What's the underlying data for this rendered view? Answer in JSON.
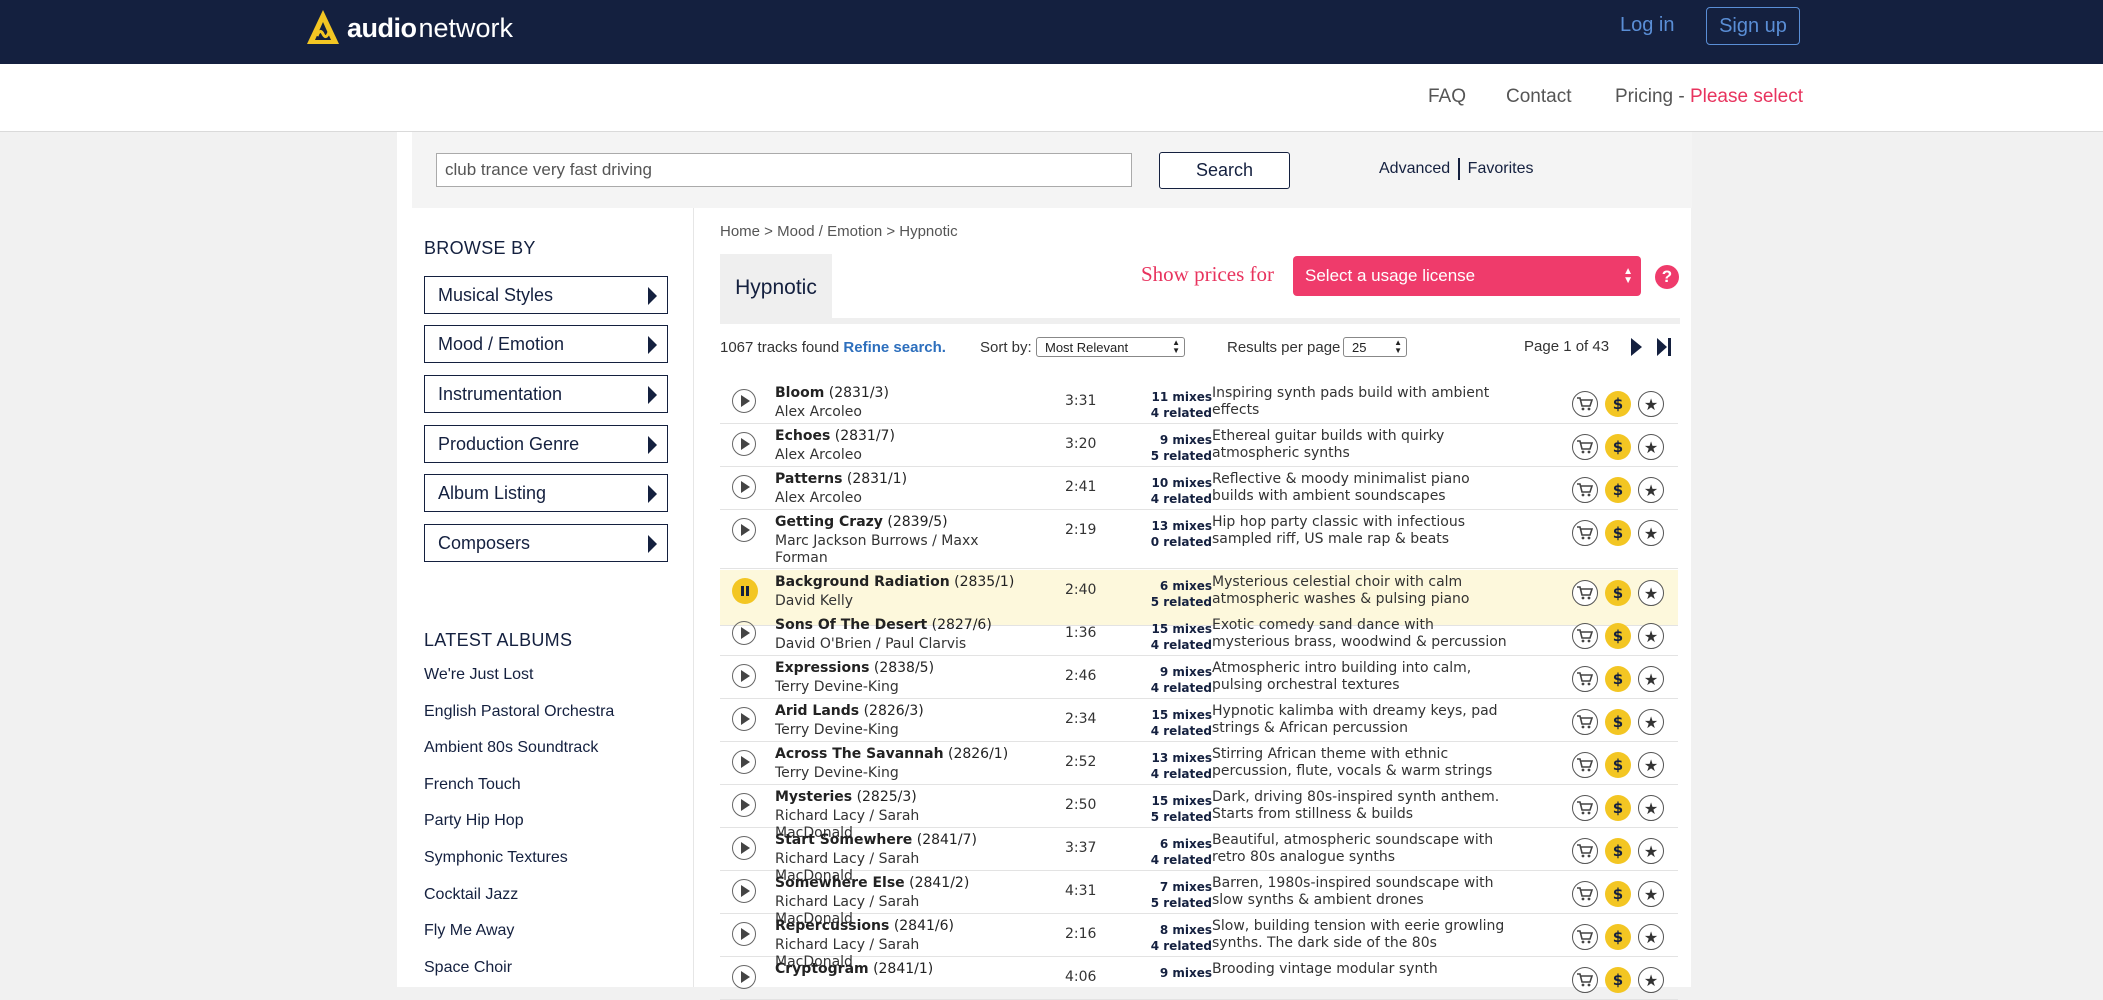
{
  "header": {
    "logo_bold": "audio",
    "logo_light": "network",
    "login": "Log in",
    "signup": "Sign up"
  },
  "subnav": {
    "faq": "FAQ",
    "contact": "Contact",
    "pricing": "Pricing -",
    "please_select": "Please select"
  },
  "search": {
    "value": "club trance very fast driving",
    "button": "Search",
    "advanced": "Advanced",
    "favorites": "Favorites"
  },
  "sidebar": {
    "browse_heading": "BROWSE BY",
    "browse_items": [
      "Musical Styles",
      "Mood / Emotion",
      "Instrumentation",
      "Production Genre",
      "Album Listing",
      "Composers"
    ],
    "latest_heading": "LATEST ALBUMS",
    "albums": [
      "We're Just Lost",
      "English Pastoral Orchestra",
      "Ambient 80s Soundtrack",
      "French Touch",
      "Party Hip Hop",
      "Symphonic Textures",
      "Cocktail Jazz",
      "Fly Me Away",
      "Space Choir"
    ]
  },
  "main": {
    "breadcrumb": "Home > Mood / Emotion > Hypnotic",
    "tab": "Hypnotic",
    "show_prices": "Show prices for",
    "license_select": "Select a usage license",
    "help": "?",
    "tracks_found": "1067 tracks found",
    "refine": "Refine search.",
    "sort_label": "Sort by:",
    "sort_value": "Most Relevant",
    "rpp_label": "Results per page",
    "rpp_value": "25",
    "page_info": "Page 1 of 43"
  },
  "accent": {
    "navy": "#14203f",
    "pink": "#ef3b6b",
    "yellow": "#f3c623",
    "link_blue": "#5a8ed6"
  },
  "tracks": [
    {
      "title": "Bloom",
      "code": "(2831/3)",
      "artist": "Alex Arcoleo",
      "duration": "3:31",
      "mixes": "11 mixes",
      "related": "4 related",
      "desc": "Inspiring synth pads build with ambient effects",
      "playing": false
    },
    {
      "title": "Echoes",
      "code": "(2831/7)",
      "artist": "Alex Arcoleo",
      "duration": "3:20",
      "mixes": "9 mixes",
      "related": "5 related",
      "desc": "Ethereal guitar builds with quirky atmospheric synths",
      "playing": false
    },
    {
      "title": "Patterns",
      "code": "(2831/1)",
      "artist": "Alex Arcoleo",
      "duration": "2:41",
      "mixes": "10 mixes",
      "related": "4 related",
      "desc": "Reflective & moody minimalist piano builds with ambient soundscapes",
      "playing": false
    },
    {
      "title": "Getting Crazy",
      "code": "(2839/5)",
      "artist": "Marc Jackson Burrows / Maxx Forman",
      "duration": "2:19",
      "mixes": "13 mixes",
      "related": "0 related",
      "desc": "Hip hop party classic with infectious sampled riff, US male rap & beats",
      "playing": false
    },
    {
      "title": "Background Radiation",
      "code": "(2835/1)",
      "artist": "David Kelly",
      "duration": "2:40",
      "mixes": "6 mixes",
      "related": "5 related",
      "desc": "Mysterious celestial choir with calm atmospheric washes & pulsing piano",
      "playing": true
    },
    {
      "title": "Sons Of The Desert",
      "code": "(2827/6)",
      "artist": "David O'Brien / Paul Clarvis",
      "duration": "1:36",
      "mixes": "15 mixes",
      "related": "4 related",
      "desc": "Exotic comedy sand dance with mysterious brass, woodwind & percussion",
      "playing": false
    },
    {
      "title": "Expressions",
      "code": "(2838/5)",
      "artist": "Terry Devine-King",
      "duration": "2:46",
      "mixes": "9 mixes",
      "related": "4 related",
      "desc": "Atmospheric intro building into calm, pulsing orchestral textures",
      "playing": false
    },
    {
      "title": "Arid Lands",
      "code": "(2826/3)",
      "artist": "Terry Devine-King",
      "duration": "2:34",
      "mixes": "15 mixes",
      "related": "4 related",
      "desc": "Hypnotic kalimba with dreamy keys, pad strings & African percussion",
      "playing": false
    },
    {
      "title": "Across The Savannah",
      "code": "(2826/1)",
      "artist": "Terry Devine-King",
      "duration": "2:52",
      "mixes": "13 mixes",
      "related": "4 related",
      "desc": "Stirring African theme with ethnic percussion, flute, vocals & warm strings",
      "playing": false
    },
    {
      "title": "Mysteries",
      "code": "(2825/3)",
      "artist": "Richard Lacy / Sarah MacDonald",
      "duration": "2:50",
      "mixes": "15 mixes",
      "related": "5 related",
      "desc": "Dark, driving 80s-inspired synth anthem. Starts from stillness & builds",
      "playing": false
    },
    {
      "title": "Start Somewhere",
      "code": "(2841/7)",
      "artist": "Richard Lacy / Sarah MacDonald",
      "duration": "3:37",
      "mixes": "6 mixes",
      "related": "4 related",
      "desc": "Beautiful, atmospheric soundscape with retro 80s analogue synths",
      "playing": false
    },
    {
      "title": "Somewhere Else",
      "code": "(2841/2)",
      "artist": "Richard Lacy / Sarah MacDonald",
      "duration": "4:31",
      "mixes": "7 mixes",
      "related": "5 related",
      "desc": "Barren, 1980s-inspired soundscape with slow synths & ambient drones",
      "playing": false
    },
    {
      "title": "Repercussions",
      "code": "(2841/6)",
      "artist": "Richard Lacy / Sarah MacDonald",
      "duration": "2:16",
      "mixes": "8 mixes",
      "related": "4 related",
      "desc": "Slow, building tension with eerie growling synths. The dark side of the 80s",
      "playing": false
    },
    {
      "title": "Cryptogram",
      "code": "(2841/1)",
      "artist": "",
      "duration": "4:06",
      "mixes": "9 mixes",
      "related": "",
      "desc": "Brooding vintage modular synth",
      "playing": false
    }
  ]
}
